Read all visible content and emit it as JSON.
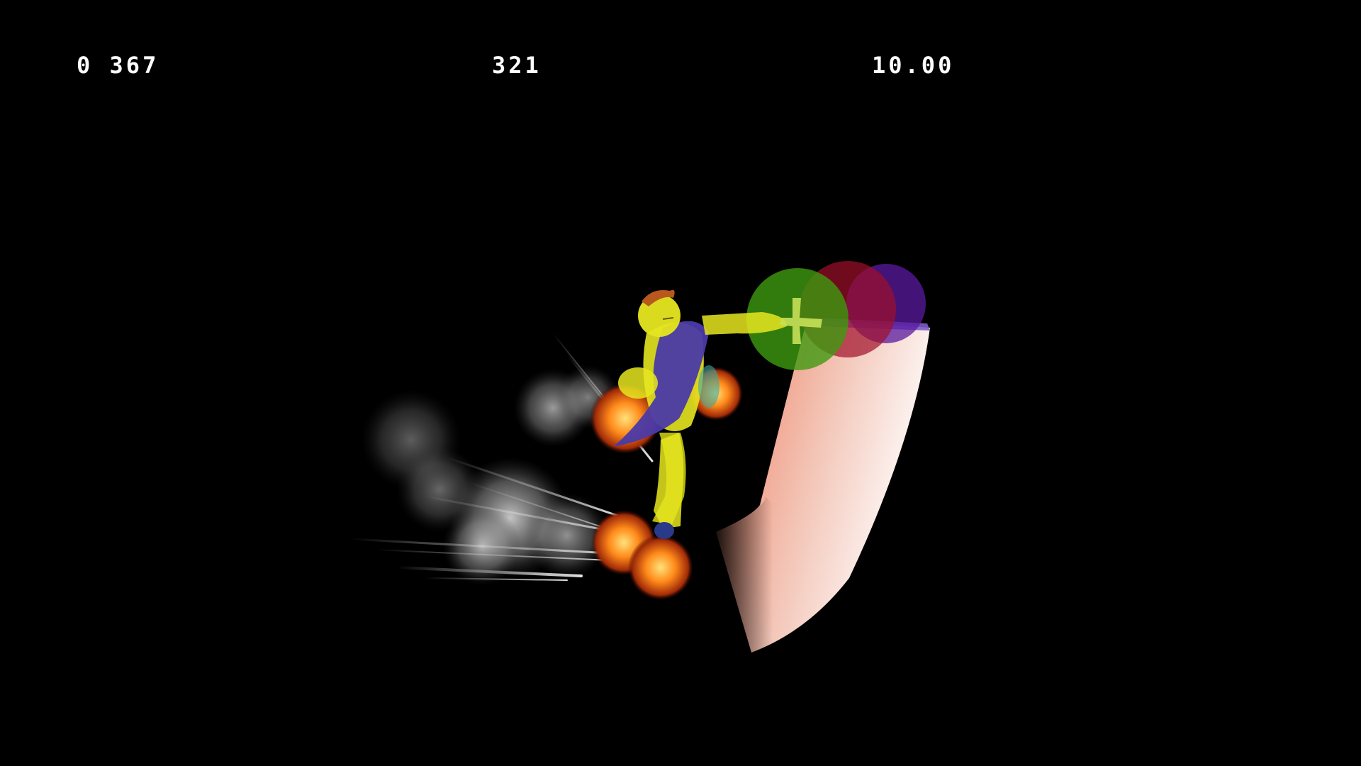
{
  "hud": {
    "left_readout": "0 367",
    "center_readout": "321",
    "right_readout": "10.00"
  },
  "colors": {
    "background": "#000000",
    "hud_text": "#ffffff",
    "fighter_body": "#e6e620",
    "fighter_cape": "#4b3aa8",
    "hitbox_green": "#3f9a10",
    "hitbox_red": "#a0102a",
    "hitbox_purple": "#5a1aa0",
    "platform_edge": "#7a5cc8",
    "ramp_top": "#f08a6a",
    "ramp_bottom": "#ffffff",
    "fire": "#ff7a1a",
    "smoke": "#bfbfbf"
  }
}
